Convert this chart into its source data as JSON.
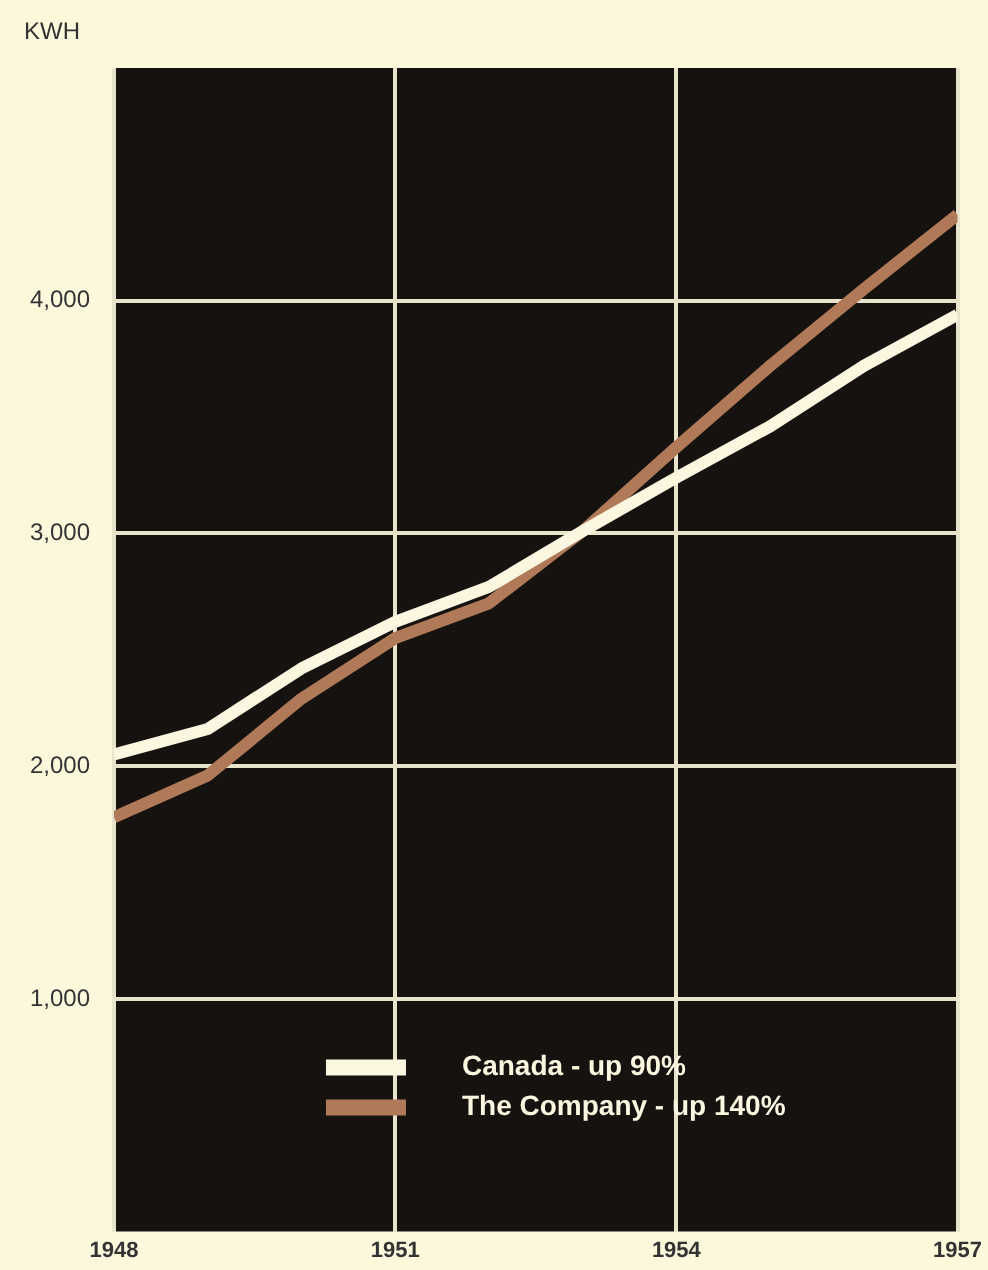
{
  "chart_data": {
    "type": "line",
    "ylabel": "KWH",
    "x": [
      1948,
      1949,
      1950,
      1951,
      1952,
      1953,
      1954,
      1955,
      1956,
      1957
    ],
    "xlim": [
      1948,
      1957
    ],
    "xticks": [
      1948,
      1951,
      1954,
      1957
    ],
    "ylim": [
      0,
      5000
    ],
    "yticks": [
      {
        "value": 1000,
        "label": "1,000"
      },
      {
        "value": 2000,
        "label": "2,000"
      },
      {
        "value": 3000,
        "label": "3,000"
      },
      {
        "value": 4000,
        "label": "4,000"
      }
    ],
    "grid": true,
    "legend": "bottom",
    "marker": "none",
    "line_style": "solid",
    "series": [
      {
        "name": "Canada - up 90%",
        "color": "#fbf6e0",
        "values": [
          2050,
          2160,
          2420,
          2620,
          2770,
          3010,
          3240,
          3460,
          3720,
          3940
        ]
      },
      {
        "name": "The Company - up 140%",
        "color": "#b07a58",
        "values": [
          1780,
          1960,
          2290,
          2550,
          2700,
          3010,
          3370,
          3720,
          4050,
          4370
        ]
      }
    ]
  }
}
